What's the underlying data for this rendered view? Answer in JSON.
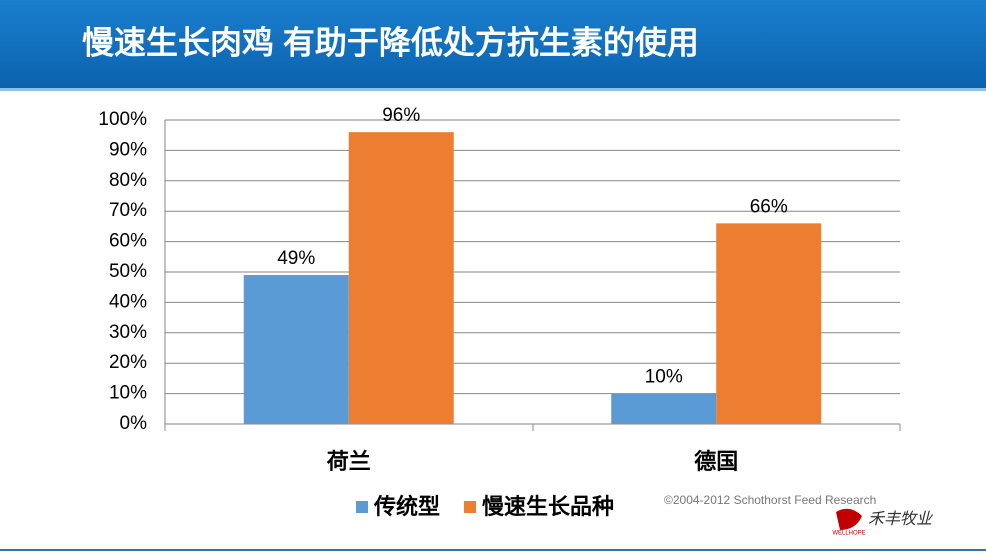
{
  "chart_data": {
    "type": "bar",
    "title": "慢速生长肉鸡 有助于降低处方抗生素的使用",
    "categories": [
      "荷兰",
      "德国"
    ],
    "series": [
      {
        "name": "传统型",
        "color": "#5b9bd5",
        "values": [
          49,
          10
        ],
        "value_labels": [
          "49%",
          "10%"
        ]
      },
      {
        "name": "慢速生长品种",
        "color": "#ed7d31",
        "values": [
          96,
          66
        ],
        "value_labels": [
          "96%",
          "66%"
        ]
      }
    ],
    "ylim": [
      0,
      100
    ],
    "yticks": [
      {
        "value": 0,
        "label": "0%"
      },
      {
        "value": 10,
        "label": "10%"
      },
      {
        "value": 20,
        "label": "20%"
      },
      {
        "value": 30,
        "label": "30%"
      },
      {
        "value": 40,
        "label": "40%"
      },
      {
        "value": 50,
        "label": "50%"
      },
      {
        "value": 60,
        "label": "60%"
      },
      {
        "value": 70,
        "label": "70%"
      },
      {
        "value": 80,
        "label": "80%"
      },
      {
        "value": 90,
        "label": "90%"
      },
      {
        "value": 100,
        "label": "100%"
      }
    ],
    "grid": true,
    "legend": "bottom",
    "copyright": "©2004-2012 Schothorst Feed Research",
    "logo": {
      "text": "禾丰牧业",
      "sub": "WELLHOPE"
    }
  }
}
